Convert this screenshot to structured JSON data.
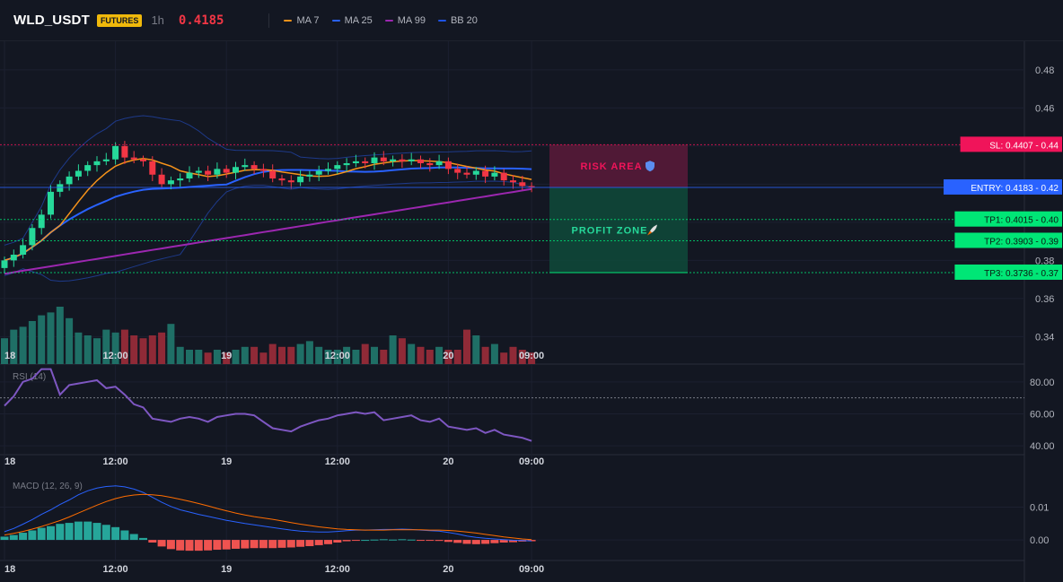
{
  "header": {
    "symbol": "WLD_USDT",
    "badge": "FUTURES",
    "timeframe": "1h",
    "price": "0.4185",
    "legend": [
      {
        "label": "MA 7",
        "color": "#f7931a"
      },
      {
        "label": "MA 25",
        "color": "#2962ff"
      },
      {
        "label": "MA 99",
        "color": "#9c27b0"
      },
      {
        "label": "BB 20",
        "color": "#1e53e5"
      }
    ]
  },
  "colors": {
    "up": "#089981",
    "down": "#f23645",
    "up_bright": "#26d99a",
    "vol_up": "#1f6f66",
    "vol_down": "#8f2a37",
    "ma7": "#f7931a",
    "ma25": "#2962ff",
    "ma99": "#9c27b0",
    "bb": "#1e3a8a",
    "rsi": "#7e57c2",
    "macd": "#2962ff",
    "signal": "#ff6d00",
    "hist_up": "#26a69a",
    "hist_down": "#ef5350",
    "sl": "#f0145a",
    "entry": "#2962ff",
    "tp": "#00e676"
  },
  "chart_data": [
    {
      "type": "candlestick",
      "panel": "price",
      "y_ticks": [
        "0.48",
        "0.46",
        "0.44",
        "0.42",
        "0.40",
        "0.38",
        "0.36",
        "0.34"
      ],
      "ylim": [
        0.335,
        0.495
      ],
      "x_ticks": [
        {
          "label": "18",
          "index": 0
        },
        {
          "label": "12:00",
          "index": 12
        },
        {
          "label": "19",
          "index": 24
        },
        {
          "label": "12:00",
          "index": 36
        },
        {
          "label": "20",
          "index": 48
        },
        {
          "label": "09:00",
          "index": 57
        }
      ],
      "closes": [
        0.38,
        0.383,
        0.388,
        0.397,
        0.404,
        0.416,
        0.42,
        0.424,
        0.427,
        0.43,
        0.432,
        0.433,
        0.44,
        0.434,
        0.433,
        0.432,
        0.425,
        0.42,
        0.422,
        0.423,
        0.426,
        0.427,
        0.425,
        0.428,
        0.426,
        0.429,
        0.43,
        0.428,
        0.427,
        0.423,
        0.422,
        0.421,
        0.424,
        0.425,
        0.427,
        0.428,
        0.43,
        0.431,
        0.432,
        0.431,
        0.434,
        0.432,
        0.433,
        0.432,
        0.433,
        0.431,
        0.43,
        0.432,
        0.428,
        0.426,
        0.425,
        0.427,
        0.424,
        0.426,
        0.422,
        0.421,
        0.419,
        0.4185
      ],
      "volumes": [
        9,
        12,
        13,
        15,
        17,
        18,
        20,
        16,
        11,
        10,
        9,
        12,
        11,
        12,
        10,
        9,
        10,
        11,
        14,
        6,
        5,
        5,
        4,
        5,
        4,
        5,
        6,
        6,
        4,
        7,
        6,
        6,
        7,
        8,
        6,
        5,
        5,
        6,
        5,
        7,
        6,
        5,
        10,
        9,
        7,
        6,
        5,
        6,
        5,
        5,
        12,
        10,
        6,
        7,
        4,
        6,
        5,
        4
      ],
      "annotations": [
        {
          "label": "RISK AREA",
          "icon": "shield-icon"
        },
        {
          "label": "PROFIT ZONE",
          "icon": "rocket-icon"
        }
      ],
      "levels": [
        {
          "name": "SL",
          "label": "SL: 0.4407",
          "value": 0.4407,
          "tick": "0.44",
          "kind": "sl"
        },
        {
          "name": "ENTRY",
          "label": "ENTRY: 0.4183",
          "value": 0.4183,
          "tick": "0.42",
          "kind": "entry"
        },
        {
          "name": "TP1",
          "label": "TP1: 0.4015",
          "value": 0.4015,
          "tick": "0.40",
          "kind": "tp"
        },
        {
          "name": "TP2",
          "label": "TP2: 0.3903",
          "value": 0.3903,
          "tick": "0.39",
          "kind": "tp"
        },
        {
          "name": "TP3",
          "label": "TP3: 0.3736",
          "value": 0.3736,
          "tick": "0.37",
          "kind": "tp"
        }
      ]
    },
    {
      "type": "line",
      "panel": "rsi",
      "title": "RSI (14)",
      "y_ticks": [
        "80.00",
        "60.00",
        "40.00"
      ],
      "ylim": [
        35,
        90
      ],
      "reference": 70,
      "values": [
        65,
        71,
        80,
        82,
        88,
        88,
        72,
        78,
        79,
        80,
        81,
        76,
        77,
        72,
        66,
        64,
        57,
        56,
        55,
        57,
        58,
        57,
        55,
        58,
        59,
        60,
        60,
        59,
        55,
        51,
        50,
        49,
        52,
        54,
        56,
        57,
        59,
        60,
        61,
        60,
        61,
        56,
        57,
        58,
        59,
        56,
        55,
        57,
        52,
        51,
        50,
        51,
        48,
        50,
        47,
        46,
        45,
        43
      ]
    },
    {
      "type": "line",
      "panel": "macd",
      "title": "MACD (12, 26, 9)",
      "y_ticks": [
        "0.01",
        "0.00"
      ],
      "ylim": [
        -0.006,
        0.02
      ],
      "macd": [
        0.0025,
        0.0035,
        0.0048,
        0.0062,
        0.0078,
        0.0092,
        0.0108,
        0.0122,
        0.0138,
        0.015,
        0.0158,
        0.0163,
        0.0165,
        0.0162,
        0.0155,
        0.0145,
        0.013,
        0.0115,
        0.0102,
        0.0092,
        0.0085,
        0.0078,
        0.0072,
        0.0066,
        0.006,
        0.0055,
        0.005,
        0.0046,
        0.0042,
        0.0038,
        0.0034,
        0.003,
        0.0027,
        0.0025,
        0.0024,
        0.0024,
        0.0026,
        0.0028,
        0.003,
        0.003,
        0.0031,
        0.0032,
        0.0032,
        0.0033,
        0.0032,
        0.003,
        0.0028,
        0.0027,
        0.0023,
        0.0018,
        0.0012,
        0.0008,
        0.0005,
        0.0003,
        0.0001,
        -0.0001,
        -0.0002,
        -0.0003
      ],
      "signal": [
        0.0015,
        0.002,
        0.0026,
        0.0033,
        0.0041,
        0.005,
        0.0059,
        0.007,
        0.0082,
        0.0094,
        0.0106,
        0.0117,
        0.0126,
        0.0133,
        0.0137,
        0.0139,
        0.0138,
        0.0135,
        0.013,
        0.0124,
        0.0118,
        0.0111,
        0.0104,
        0.0096,
        0.0089,
        0.0082,
        0.0076,
        0.0071,
        0.0067,
        0.0063,
        0.0058,
        0.0053,
        0.0048,
        0.0044,
        0.004,
        0.0037,
        0.0034,
        0.0032,
        0.0031,
        0.003,
        0.003,
        0.003,
        0.0031,
        0.0031,
        0.0031,
        0.0031,
        0.003,
        0.003,
        0.0029,
        0.0027,
        0.0024,
        0.0021,
        0.0017,
        0.0013,
        0.0009,
        0.0006,
        0.0003,
        0.0001
      ],
      "histogram": [
        0.001,
        0.0015,
        0.0022,
        0.0029,
        0.0037,
        0.0042,
        0.0049,
        0.0052,
        0.0056,
        0.0056,
        0.0052,
        0.0046,
        0.0039,
        0.0029,
        0.0018,
        0.0006,
        -0.0008,
        -0.002,
        -0.0028,
        -0.0032,
        -0.0033,
        -0.0033,
        -0.0032,
        -0.003,
        -0.0029,
        -0.0027,
        -0.0026,
        -0.0025,
        -0.0025,
        -0.0025,
        -0.0024,
        -0.0023,
        -0.0021,
        -0.0019,
        -0.0016,
        -0.0013,
        -0.0008,
        -0.0004,
        -0.0001,
        0.0,
        0.0001,
        0.0002,
        0.0001,
        0.0002,
        0.0001,
        -0.0001,
        -0.0002,
        -0.0003,
        -0.0006,
        -0.0009,
        -0.0012,
        -0.0013,
        -0.0012,
        -0.001,
        -0.0008,
        -0.0007,
        -0.0005,
        -0.0004
      ]
    }
  ]
}
